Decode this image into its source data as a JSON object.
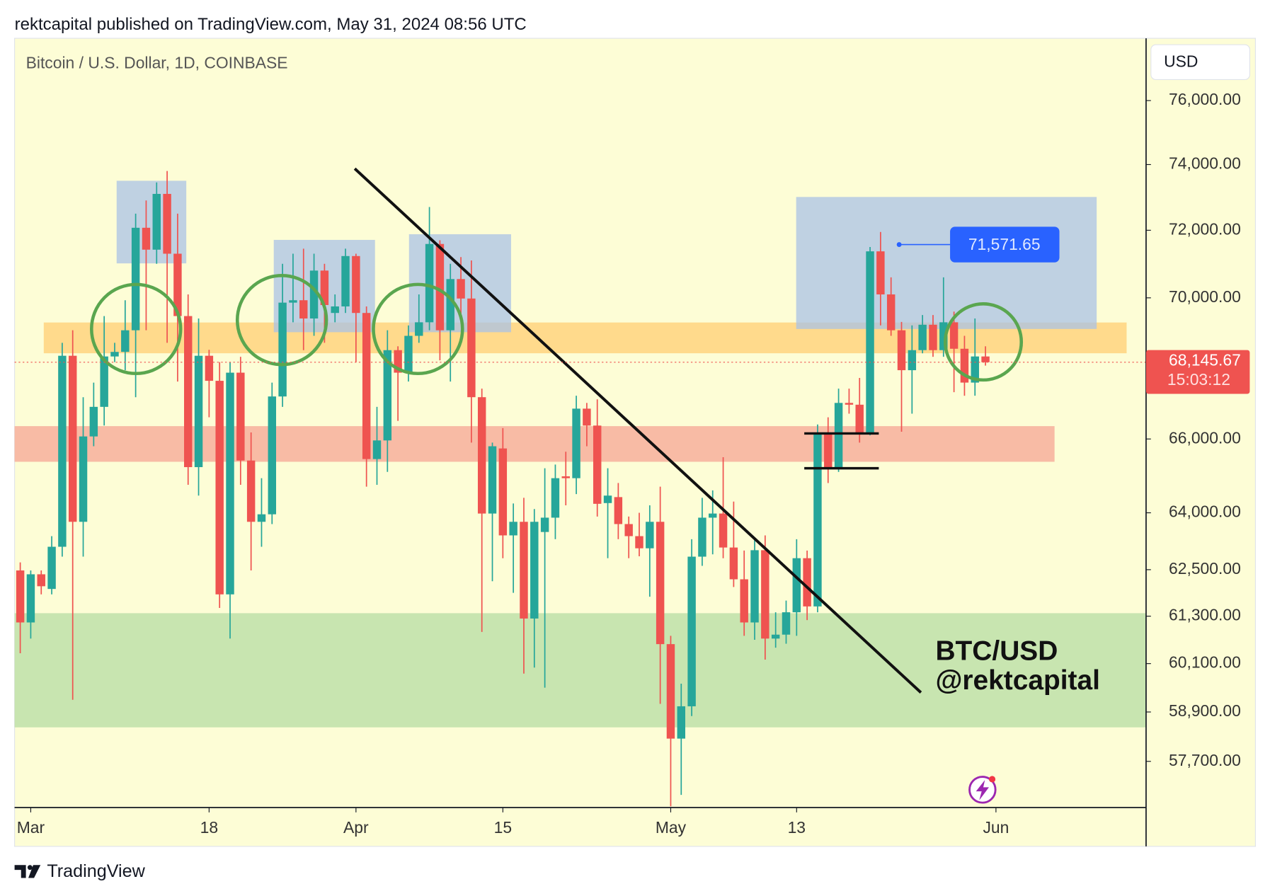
{
  "header": "rektcapital published on TradingView.com, May 31, 2024 08:56 UTC",
  "footer": "TradingView",
  "chart_data": {
    "type": "candlestick",
    "title": "Bitcoin / U.S. Dollar, 1D, COINBASE",
    "currency": "USD",
    "log_scale": true,
    "up_color": "#26a69a",
    "down_color": "#ef5350",
    "xlim": [
      "2024-02-29",
      "2024-06-15"
    ],
    "xticks": [
      {
        "value": "2024-03-01",
        "label": "Mar"
      },
      {
        "value": "2024-03-18",
        "label": "18"
      },
      {
        "value": "2024-04-01",
        "label": "Apr"
      },
      {
        "value": "2024-04-15",
        "label": "15"
      },
      {
        "value": "2024-05-01",
        "label": "May"
      },
      {
        "value": "2024-05-13",
        "label": "13"
      },
      {
        "value": "2024-06-01",
        "label": "Jun"
      }
    ],
    "ylim": [
      56600,
      78000
    ],
    "yticks": [
      {
        "value": 76000,
        "label": "76,000.00"
      },
      {
        "value": 74000,
        "label": "74,000.00"
      },
      {
        "value": 72000,
        "label": "72,000.00"
      },
      {
        "value": 70000,
        "label": "70,000.00"
      },
      {
        "value": 66000,
        "label": "66,000.00"
      },
      {
        "value": 64000,
        "label": "64,000.00"
      },
      {
        "value": 62500,
        "label": "62,500.00"
      },
      {
        "value": 61300,
        "label": "61,300.00"
      },
      {
        "value": 60100,
        "label": "60,100.00"
      },
      {
        "value": 58900,
        "label": "58,900.00"
      },
      {
        "value": 57700,
        "label": "57,700.00"
      }
    ],
    "x": [
      "2024-02-29",
      "2024-03-01",
      "2024-03-02",
      "2024-03-03",
      "2024-03-04",
      "2024-03-05",
      "2024-03-06",
      "2024-03-07",
      "2024-03-08",
      "2024-03-09",
      "2024-03-10",
      "2024-03-11",
      "2024-03-12",
      "2024-03-13",
      "2024-03-14",
      "2024-03-15",
      "2024-03-16",
      "2024-03-17",
      "2024-03-18",
      "2024-03-19",
      "2024-03-20",
      "2024-03-21",
      "2024-03-22",
      "2024-03-23",
      "2024-03-24",
      "2024-03-25",
      "2024-03-26",
      "2024-03-27",
      "2024-03-28",
      "2024-03-29",
      "2024-03-30",
      "2024-03-31",
      "2024-04-01",
      "2024-04-02",
      "2024-04-03",
      "2024-04-04",
      "2024-04-05",
      "2024-04-06",
      "2024-04-07",
      "2024-04-08",
      "2024-04-09",
      "2024-04-10",
      "2024-04-11",
      "2024-04-12",
      "2024-04-13",
      "2024-04-14",
      "2024-04-15",
      "2024-04-16",
      "2024-04-17",
      "2024-04-18",
      "2024-04-19",
      "2024-04-20",
      "2024-04-21",
      "2024-04-22",
      "2024-04-23",
      "2024-04-24",
      "2024-04-25",
      "2024-04-26",
      "2024-04-27",
      "2024-04-28",
      "2024-04-29",
      "2024-04-30",
      "2024-05-01",
      "2024-05-02",
      "2024-05-03",
      "2024-05-04",
      "2024-05-05",
      "2024-05-06",
      "2024-05-07",
      "2024-05-08",
      "2024-05-09",
      "2024-05-10",
      "2024-05-11",
      "2024-05-12",
      "2024-05-13",
      "2024-05-14",
      "2024-05-15",
      "2024-05-16",
      "2024-05-17",
      "2024-05-18",
      "2024-05-19",
      "2024-05-20",
      "2024-05-21",
      "2024-05-22",
      "2024-05-23",
      "2024-05-24",
      "2024-05-25",
      "2024-05-26",
      "2024-05-27",
      "2024-05-28",
      "2024-05-29",
      "2024-05-30",
      "2024-05-31"
    ],
    "open": [
      62480,
      61140,
      62380,
      62000,
      63100,
      68330,
      63760,
      66070,
      66890,
      68310,
      68440,
      69060,
      72075,
      71420,
      73100,
      71300,
      69470,
      65230,
      68330,
      67620,
      61860,
      67850,
      65410,
      63760,
      63960,
      67180,
      69860,
      69930,
      69400,
      70800,
      69560,
      69750,
      71230,
      69560,
      65450,
      65960,
      68490,
      67850,
      68900,
      69290,
      71590,
      69060,
      70550,
      69980,
      67160,
      63980,
      65740,
      63400,
      63760,
      61240,
      63490,
      63870,
      64980,
      64930,
      66840,
      66370,
      64260,
      64420,
      63700,
      63380,
      63060,
      63760,
      60590,
      58250,
      59040,
      62840,
      63870,
      63980,
      63080,
      62250,
      61140,
      63010,
      60730,
      60830,
      61400,
      62800,
      61550,
      66180,
      65230,
      67000,
      66950,
      66180,
      71370,
      70100,
      69060,
      67920,
      68490,
      69220,
      68490,
      69290,
      68530,
      67570,
      68310
    ],
    "high": [
      62690,
      62480,
      62480,
      63380,
      68700,
      69060,
      67160,
      67570,
      69470,
      68700,
      69930,
      72500,
      72900,
      73450,
      73800,
      72500,
      70100,
      69400,
      68500,
      68150,
      68150,
      68300,
      66180,
      64930,
      67570,
      71000,
      71300,
      71450,
      71300,
      71000,
      70100,
      71450,
      71300,
      69750,
      66890,
      69060,
      68600,
      69200,
      70100,
      72700,
      71700,
      71000,
      71200,
      71100,
      67400,
      65900,
      66300,
      64250,
      64400,
      64100,
      65200,
      65300,
      65650,
      67200,
      67000,
      67100,
      65200,
      64800,
      63900,
      64000,
      64200,
      64700,
      60800,
      59600,
      63300,
      64400,
      64600,
      65500,
      64300,
      63000,
      63300,
      63400,
      61400,
      61700,
      63300,
      63000,
      66400,
      66600,
      67400,
      67400,
      67700,
      71500,
      71950,
      70600,
      69300,
      69200,
      69500,
      69500,
      70600,
      69600,
      68900,
      69400,
      68600
    ],
    "low": [
      60360,
      60730,
      61860,
      61860,
      62840,
      59200,
      62840,
      65800,
      66370,
      68150,
      67920,
      67160,
      69060,
      71000,
      68700,
      67600,
      64750,
      64460,
      66600,
      61510,
      60730,
      64750,
      62480,
      63100,
      63700,
      66890,
      69290,
      68490,
      68900,
      68700,
      69290,
      69560,
      68150,
      64700,
      64750,
      65100,
      66500,
      67600,
      68700,
      69060,
      68200,
      67600,
      69500,
      65900,
      60900,
      62200,
      62800,
      61900,
      59850,
      60000,
      59500,
      63300,
      64200,
      64500,
      65800,
      63900,
      62800,
      63300,
      62800,
      62850,
      61800,
      59100,
      56630,
      56900,
      58800,
      62600,
      62900,
      62800,
      62050,
      60800,
      60700,
      60200,
      60500,
      60600,
      60800,
      61200,
      61400,
      64800,
      65100,
      66700,
      65900,
      66100,
      69200,
      68900,
      66200,
      66700,
      68400,
      68300,
      68300,
      67300,
      67200,
      67200,
      68050
    ],
    "close": [
      61140,
      62380,
      62070,
      63100,
      68330,
      63760,
      66070,
      66890,
      68310,
      68440,
      69060,
      72075,
      71420,
      73100,
      71300,
      69470,
      65230,
      68330,
      67620,
      61860,
      67850,
      65410,
      63760,
      63960,
      67180,
      69860,
      69930,
      69400,
      70800,
      69790,
      69750,
      71230,
      69560,
      65450,
      65960,
      68490,
      67850,
      68900,
      69290,
      71590,
      69060,
      70550,
      69980,
      67160,
      63980,
      65800,
      63400,
      63760,
      61240,
      63760,
      63870,
      64930,
      64930,
      66840,
      66370,
      64240,
      64460,
      63700,
      63380,
      63060,
      63760,
      60590,
      58250,
      59040,
      62840,
      63870,
      63980,
      63080,
      62250,
      61140,
      63010,
      60730,
      60830,
      61400,
      62800,
      61550,
      66180,
      65230,
      67000,
      66950,
      66180,
      71370,
      70100,
      69060,
      67920,
      68490,
      69220,
      68490,
      69290,
      68530,
      67570,
      68310,
      68145.67
    ],
    "last_price": {
      "value": 68145.67,
      "label": "68,145.67"
    },
    "countdown": "15:03:12",
    "price_marker": {
      "value": 71571.65,
      "label": "71,571.65"
    },
    "annotations": [
      "BTC/USD",
      "@rektcapital"
    ]
  }
}
